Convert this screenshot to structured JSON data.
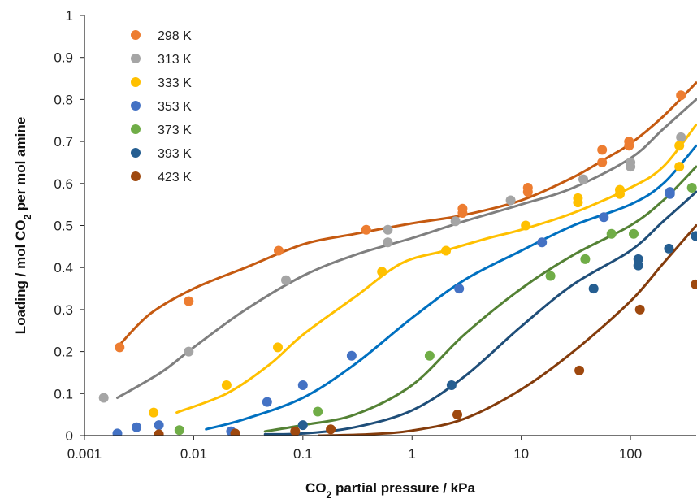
{
  "chart_data": {
    "type": "scatter",
    "xlabel": "CO2 partial pressure / kPa",
    "xlabel_parts": [
      "CO",
      "2",
      " partial pressure / kPa"
    ],
    "ylabel": "Loading / mol CO2 per mol amine",
    "ylabel_parts": [
      "Loading / mol CO",
      "2",
      " per mol amine"
    ],
    "x_scale": "log",
    "xlim": [
      0.001,
      400
    ],
    "ylim": [
      0,
      1
    ],
    "x_ticks": [
      0.001,
      0.01,
      0.1,
      1,
      10,
      100
    ],
    "x_tick_labels": [
      "0.001",
      "0.01",
      "0.1",
      "1",
      "10",
      "100"
    ],
    "y_ticks": [
      0,
      0.1,
      0.2,
      0.3,
      0.4,
      0.5,
      0.6,
      0.7,
      0.8,
      0.9,
      1
    ],
    "y_tick_labels": [
      "0",
      "0.1",
      "0.2",
      "0.3",
      "0.4",
      "0.5",
      "0.6",
      "0.7",
      "0.8",
      "0.9",
      "1"
    ],
    "grid": false,
    "legend_position": "top-left",
    "series": [
      {
        "name": "298 K",
        "color": "#ED7D31",
        "line_color": "#C55A11",
        "points": [
          [
            0.0021,
            0.21
          ],
          [
            0.009,
            0.32
          ],
          [
            0.06,
            0.44
          ],
          [
            0.38,
            0.49
          ],
          [
            2.9,
            0.53
          ],
          [
            2.9,
            0.54
          ],
          [
            11.5,
            0.58
          ],
          [
            11.5,
            0.59
          ],
          [
            55,
            0.65
          ],
          [
            55,
            0.68
          ],
          [
            97,
            0.69
          ],
          [
            97,
            0.7
          ],
          [
            290,
            0.81
          ]
        ],
        "curve": [
          [
            0.002,
            0.21
          ],
          [
            0.004,
            0.29
          ],
          [
            0.01,
            0.35
          ],
          [
            0.03,
            0.4
          ],
          [
            0.1,
            0.455
          ],
          [
            0.3,
            0.48
          ],
          [
            1,
            0.505
          ],
          [
            3,
            0.525
          ],
          [
            10,
            0.56
          ],
          [
            30,
            0.615
          ],
          [
            60,
            0.66
          ],
          [
            100,
            0.695
          ],
          [
            200,
            0.76
          ],
          [
            400,
            0.84
          ]
        ]
      },
      {
        "name": "313 K",
        "color": "#A5A5A5",
        "line_color": "#7F7F7F",
        "points": [
          [
            0.0015,
            0.09
          ],
          [
            0.009,
            0.2
          ],
          [
            0.07,
            0.37
          ],
          [
            0.6,
            0.46
          ],
          [
            0.6,
            0.49
          ],
          [
            2.5,
            0.51
          ],
          [
            8,
            0.56
          ],
          [
            37,
            0.61
          ],
          [
            100,
            0.64
          ],
          [
            100,
            0.65
          ],
          [
            290,
            0.71
          ]
        ],
        "curve": [
          [
            0.002,
            0.09
          ],
          [
            0.005,
            0.15
          ],
          [
            0.01,
            0.21
          ],
          [
            0.03,
            0.3
          ],
          [
            0.1,
            0.38
          ],
          [
            0.3,
            0.43
          ],
          [
            1,
            0.47
          ],
          [
            3,
            0.51
          ],
          [
            10,
            0.55
          ],
          [
            30,
            0.59
          ],
          [
            100,
            0.66
          ],
          [
            200,
            0.73
          ],
          [
            400,
            0.8
          ]
        ]
      },
      {
        "name": "333 K",
        "color": "#FFC000",
        "line_color": "#FFC000",
        "points": [
          [
            0.0043,
            0.055
          ],
          [
            0.02,
            0.12
          ],
          [
            0.059,
            0.21
          ],
          [
            0.53,
            0.39
          ],
          [
            2.05,
            0.44
          ],
          [
            11,
            0.5
          ],
          [
            33,
            0.555
          ],
          [
            33,
            0.565
          ],
          [
            80,
            0.575
          ],
          [
            80,
            0.585
          ],
          [
            280,
            0.64
          ],
          [
            280,
            0.69
          ]
        ],
        "curve": [
          [
            0.007,
            0.055
          ],
          [
            0.02,
            0.1
          ],
          [
            0.05,
            0.17
          ],
          [
            0.1,
            0.24
          ],
          [
            0.3,
            0.33
          ],
          [
            0.8,
            0.41
          ],
          [
            2,
            0.44
          ],
          [
            5,
            0.47
          ],
          [
            10,
            0.49
          ],
          [
            30,
            0.53
          ],
          [
            100,
            0.59
          ],
          [
            200,
            0.64
          ],
          [
            400,
            0.74
          ]
        ]
      },
      {
        "name": "353 K",
        "color": "#4472C4",
        "line_color": "#0070C0",
        "points": [
          [
            0.002,
            0.005
          ],
          [
            0.003,
            0.02
          ],
          [
            0.0048,
            0.025
          ],
          [
            0.022,
            0.01
          ],
          [
            0.047,
            0.08
          ],
          [
            0.1,
            0.12
          ],
          [
            0.28,
            0.19
          ],
          [
            2.7,
            0.35
          ],
          [
            15.5,
            0.46
          ],
          [
            57,
            0.52
          ],
          [
            230,
            0.575
          ],
          [
            230,
            0.58
          ]
        ],
        "curve": [
          [
            0.013,
            0.015
          ],
          [
            0.03,
            0.04
          ],
          [
            0.1,
            0.09
          ],
          [
            0.3,
            0.17
          ],
          [
            1,
            0.28
          ],
          [
            3,
            0.37
          ],
          [
            10,
            0.44
          ],
          [
            30,
            0.5
          ],
          [
            100,
            0.55
          ],
          [
            200,
            0.6
          ],
          [
            400,
            0.69
          ]
        ]
      },
      {
        "name": "373 K",
        "color": "#70AD47",
        "line_color": "#548235",
        "points": [
          [
            0.0074,
            0.013
          ],
          [
            0.137,
            0.057
          ],
          [
            1.45,
            0.19
          ],
          [
            18.5,
            0.38
          ],
          [
            38.5,
            0.42
          ],
          [
            67,
            0.48
          ],
          [
            107,
            0.48
          ],
          [
            365,
            0.59
          ]
        ],
        "curve": [
          [
            0.045,
            0.01
          ],
          [
            0.1,
            0.025
          ],
          [
            0.3,
            0.05
          ],
          [
            1,
            0.12
          ],
          [
            3,
            0.24
          ],
          [
            10,
            0.35
          ],
          [
            30,
            0.43
          ],
          [
            100,
            0.5
          ],
          [
            200,
            0.56
          ],
          [
            400,
            0.64
          ]
        ]
      },
      {
        "name": "393 K",
        "color": "#255E91",
        "line_color": "#1F4E79",
        "points": [
          [
            0.1,
            0.025
          ],
          [
            2.3,
            0.12
          ],
          [
            46,
            0.35
          ],
          [
            118,
            0.405
          ],
          [
            118,
            0.42
          ],
          [
            225,
            0.445
          ],
          [
            395,
            0.475
          ]
        ],
        "curve": [
          [
            0.045,
            0.003
          ],
          [
            0.1,
            0.005
          ],
          [
            0.3,
            0.02
          ],
          [
            1,
            0.06
          ],
          [
            3,
            0.14
          ],
          [
            10,
            0.26
          ],
          [
            30,
            0.36
          ],
          [
            100,
            0.44
          ],
          [
            200,
            0.51
          ],
          [
            400,
            0.58
          ]
        ]
      },
      {
        "name": "423 K",
        "color": "#9E480E",
        "line_color": "#843C0C",
        "points": [
          [
            0.0048,
            0.003
          ],
          [
            0.024,
            0.005
          ],
          [
            0.085,
            0.01
          ],
          [
            0.18,
            0.015
          ],
          [
            2.6,
            0.05
          ],
          [
            34,
            0.155
          ],
          [
            122,
            0.3
          ],
          [
            395,
            0.36
          ]
        ],
        "curve": [
          [
            0.14,
            0.0
          ],
          [
            0.4,
            0.003
          ],
          [
            1,
            0.012
          ],
          [
            3,
            0.04
          ],
          [
            10,
            0.11
          ],
          [
            30,
            0.2
          ],
          [
            100,
            0.32
          ],
          [
            200,
            0.41
          ],
          [
            400,
            0.5
          ]
        ]
      }
    ]
  }
}
